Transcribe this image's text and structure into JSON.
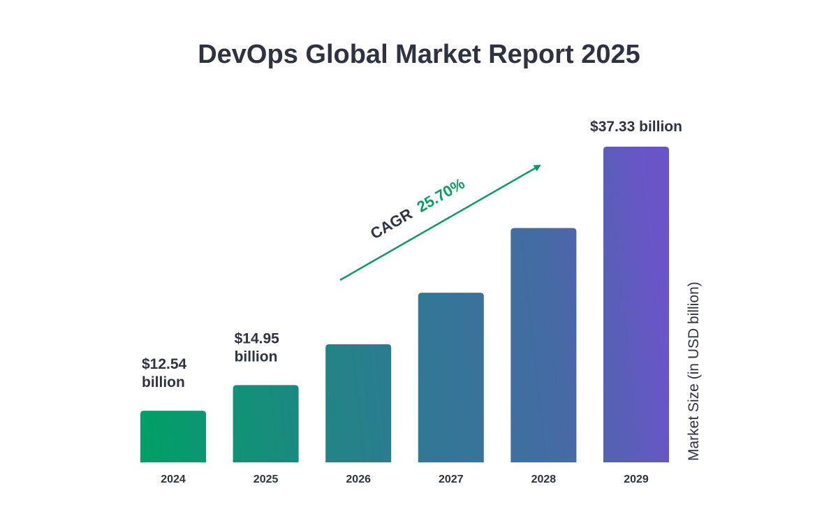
{
  "chart_data": {
    "type": "bar",
    "title": "DevOps Global Market Report 2025",
    "xlabel": "",
    "ylabel": "Market Size (in USD billion)",
    "categories": [
      "2024",
      "2025",
      "2026",
      "2027",
      "2028",
      "2029"
    ],
    "values": [
      12.54,
      14.95,
      18.79,
      23.62,
      29.69,
      37.33
    ],
    "data_labels": [
      "$12.54 billion",
      "$14.95 billion",
      null,
      null,
      null,
      "$37.33 billion"
    ],
    "ylim": [
      7.7,
      37.33
    ],
    "grid": false,
    "legend": "none",
    "annotation": {
      "prefix": "CAGR",
      "value": "25.70%"
    },
    "colors": {
      "start": "#00a066",
      "mid": "#2e7a92",
      "end": "#6a55c8",
      "text": "#2d3340",
      "accent": "#0e9a63"
    }
  }
}
